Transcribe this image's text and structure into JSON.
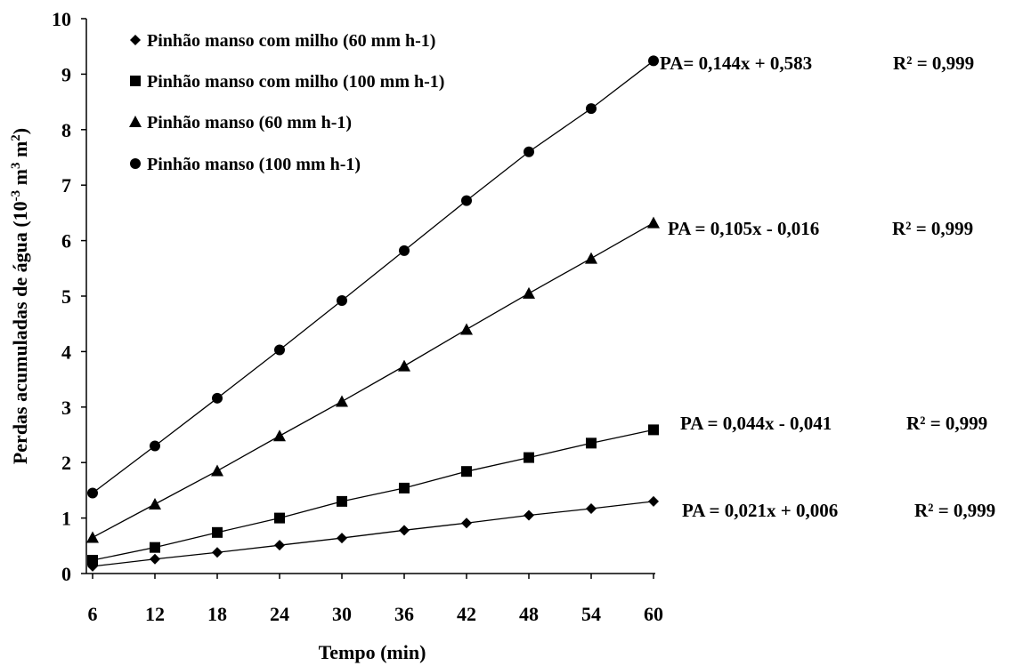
{
  "chart_data": {
    "type": "line",
    "xlabel": "Tempo (min)",
    "ylabel_main": "Perdas acumuladas de água (10",
    "ylabel_sup1": "-3",
    "ylabel_mid": " m",
    "ylabel_sup2": "3",
    "ylabel_mid2": " m",
    "ylabel_sup3": "2",
    "ylabel_end": ")",
    "x": [
      6,
      12,
      18,
      24,
      30,
      36,
      42,
      48,
      54,
      60
    ],
    "x_ticks": [
      "6",
      "12",
      "18",
      "24",
      "30",
      "36",
      "42",
      "48",
      "54",
      "60"
    ],
    "y_ticks": [
      "0",
      "1",
      "2",
      "3",
      "4",
      "5",
      "6",
      "7",
      "8",
      "9",
      "10"
    ],
    "ylim": [
      0,
      10
    ],
    "grid": false,
    "legend_position": "top-left",
    "series": [
      {
        "name": "Pinhão manso com milho (60 mm h-1)",
        "marker": "diamond",
        "values": [
          0.13,
          0.26,
          0.38,
          0.51,
          0.64,
          0.78,
          0.91,
          1.05,
          1.17,
          1.3
        ],
        "equation": "PA = 0,021x + 0,006",
        "r2": "R² = 0,999"
      },
      {
        "name": "Pinhão manso com milho (100 mm h-1)",
        "marker": "square",
        "values": [
          0.24,
          0.47,
          0.74,
          1.0,
          1.3,
          1.54,
          1.84,
          2.09,
          2.35,
          2.59
        ],
        "equation": "PA = 0,044x - 0,041",
        "r2": "R² = 0,999"
      },
      {
        "name": "Pinhão manso (60 mm h-1)",
        "marker": "triangle",
        "values": [
          0.65,
          1.25,
          1.85,
          2.48,
          3.1,
          3.74,
          4.4,
          5.05,
          5.68,
          6.32
        ],
        "equation": "PA = 0,105x - 0,016",
        "r2": "R² = 0,999"
      },
      {
        "name": "Pinhão manso (100 mm h-1)",
        "marker": "circle",
        "values": [
          1.45,
          2.3,
          3.16,
          4.03,
          4.92,
          5.82,
          6.72,
          7.6,
          8.38,
          9.24
        ],
        "equation": "PA= 0,144x + 0,583",
        "r2": "R² = 0,999"
      }
    ]
  }
}
